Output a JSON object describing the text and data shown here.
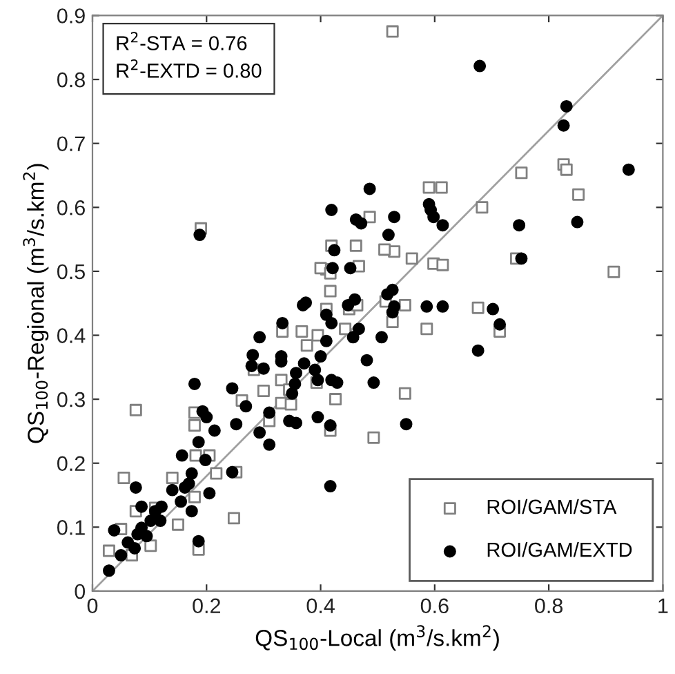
{
  "chart_data": {
    "type": "scatter",
    "xlabel": "QS$_{100}$-Local (m$^{3}$/s.km$^{2}$)",
    "ylabel": "QS$_{100}$-Regional (m$^{3}$/s.km$^{2}$)",
    "annotations": [
      "R$^{2}$-STA = 0.76",
      "R$^{2}$-EXTD = 0.80"
    ],
    "xlim": [
      0,
      1
    ],
    "ylim": [
      0,
      0.9
    ],
    "xticks": [
      0,
      0.2,
      0.4,
      0.6,
      0.8,
      1
    ],
    "yticks": [
      0,
      0.1,
      0.2,
      0.3,
      0.4,
      0.5,
      0.6,
      0.7,
      0.8,
      0.9
    ],
    "grid": false,
    "legend": "bottom right",
    "series": [
      {
        "name": "ROI/GAM/STA",
        "color": "#808080",
        "marker": "square",
        "x": [
          0.683,
          0.826,
          0.831,
          0.852,
          0.743,
          0.914,
          0.676,
          0.714,
          0.752,
          0.526,
          0.59,
          0.612,
          0.486,
          0.419,
          0.462,
          0.529,
          0.56,
          0.598,
          0.614,
          0.41,
          0.467,
          0.4,
          0.417,
          0.512,
          0.417,
          0.41,
          0.45,
          0.464,
          0.514,
          0.526,
          0.548,
          0.333,
          0.367,
          0.376,
          0.395,
          0.443,
          0.586,
          0.331,
          0.345,
          0.393,
          0.426,
          0.548,
          0.331,
          0.417,
          0.493,
          0.076,
          0.055,
          0.179,
          0.14,
          0.248,
          0.186,
          0.029,
          0.076,
          0.11,
          0.102,
          0.069,
          0.15,
          0.181,
          0.217,
          0.252,
          0.205,
          0.179,
          0.283,
          0.3,
          0.348,
          0.31,
          0.262,
          0.179,
          0.05,
          0.19
        ],
        "values": [
          0.6,
          0.667,
          0.659,
          0.62,
          0.52,
          0.499,
          0.443,
          0.406,
          0.654,
          0.875,
          0.631,
          0.631,
          0.585,
          0.54,
          0.54,
          0.531,
          0.52,
          0.512,
          0.51,
          0.503,
          0.508,
          0.505,
          0.497,
          0.534,
          0.469,
          0.441,
          0.441,
          0.447,
          0.453,
          0.421,
          0.447,
          0.406,
          0.406,
          0.384,
          0.4,
          0.41,
          0.41,
          0.33,
          0.315,
          0.326,
          0.3,
          0.309,
          0.294,
          0.251,
          0.24,
          0.283,
          0.177,
          0.279,
          0.177,
          0.114,
          0.065,
          0.063,
          0.125,
          0.13,
          0.071,
          0.056,
          0.104,
          0.212,
          0.184,
          0.186,
          0.212,
          0.147,
          0.346,
          0.313,
          0.292,
          0.266,
          0.298,
          0.259,
          0.097,
          0.567
        ]
      },
      {
        "name": "ROI/GAM/EXTD",
        "color": "#000000",
        "marker": "circle",
        "x": [
          0.679,
          0.831,
          0.826,
          0.94,
          0.748,
          0.85,
          0.752,
          0.702,
          0.714,
          0.676,
          0.419,
          0.486,
          0.462,
          0.471,
          0.529,
          0.519,
          0.59,
          0.593,
          0.598,
          0.614,
          0.424,
          0.421,
          0.452,
          0.369,
          0.374,
          0.333,
          0.41,
          0.419,
          0.448,
          0.46,
          0.517,
          0.526,
          0.529,
          0.526,
          0.586,
          0.614,
          0.41,
          0.4,
          0.457,
          0.467,
          0.507,
          0.331,
          0.331,
          0.371,
          0.355,
          0.39,
          0.35,
          0.395,
          0.419,
          0.429,
          0.481,
          0.493,
          0.357,
          0.395,
          0.417,
          0.55,
          0.417,
          0.293,
          0.281,
          0.279,
          0.3,
          0.357,
          0.179,
          0.245,
          0.269,
          0.31,
          0.345,
          0.193,
          0.2,
          0.214,
          0.252,
          0.293,
          0.31,
          0.157,
          0.186,
          0.198,
          0.174,
          0.169,
          0.245,
          0.205,
          0.155,
          0.162,
          0.14,
          0.11,
          0.121,
          0.102,
          0.086,
          0.079,
          0.062,
          0.05,
          0.029,
          0.038,
          0.076,
          0.086,
          0.186,
          0.174,
          0.119,
          0.095,
          0.074,
          0.188
        ],
        "values": [
          0.821,
          0.758,
          0.728,
          0.659,
          0.572,
          0.577,
          0.52,
          0.441,
          0.417,
          0.376,
          0.596,
          0.629,
          0.581,
          0.575,
          0.585,
          0.557,
          0.605,
          0.596,
          0.585,
          0.572,
          0.533,
          0.505,
          0.505,
          0.447,
          0.451,
          0.419,
          0.432,
          0.419,
          0.447,
          0.456,
          0.464,
          0.471,
          0.445,
          0.436,
          0.445,
          0.445,
          0.391,
          0.367,
          0.397,
          0.41,
          0.397,
          0.367,
          0.359,
          0.356,
          0.324,
          0.346,
          0.309,
          0.33,
          0.33,
          0.326,
          0.361,
          0.326,
          0.263,
          0.272,
          0.259,
          0.261,
          0.164,
          0.397,
          0.369,
          0.352,
          0.348,
          0.341,
          0.324,
          0.317,
          0.289,
          0.279,
          0.266,
          0.281,
          0.272,
          0.251,
          0.261,
          0.248,
          0.229,
          0.212,
          0.233,
          0.205,
          0.184,
          0.168,
          0.186,
          0.153,
          0.14,
          0.162,
          0.158,
          0.125,
          0.132,
          0.11,
          0.099,
          0.089,
          0.076,
          0.056,
          0.032,
          0.095,
          0.162,
          0.132,
          0.078,
          0.125,
          0.11,
          0.086,
          0.067,
          0.557
        ]
      },
      {
        "type": "line",
        "color": "#a0a0a0",
        "x": [
          0,
          1
        ],
        "values": [
          0,
          0.9
        ]
      }
    ]
  }
}
